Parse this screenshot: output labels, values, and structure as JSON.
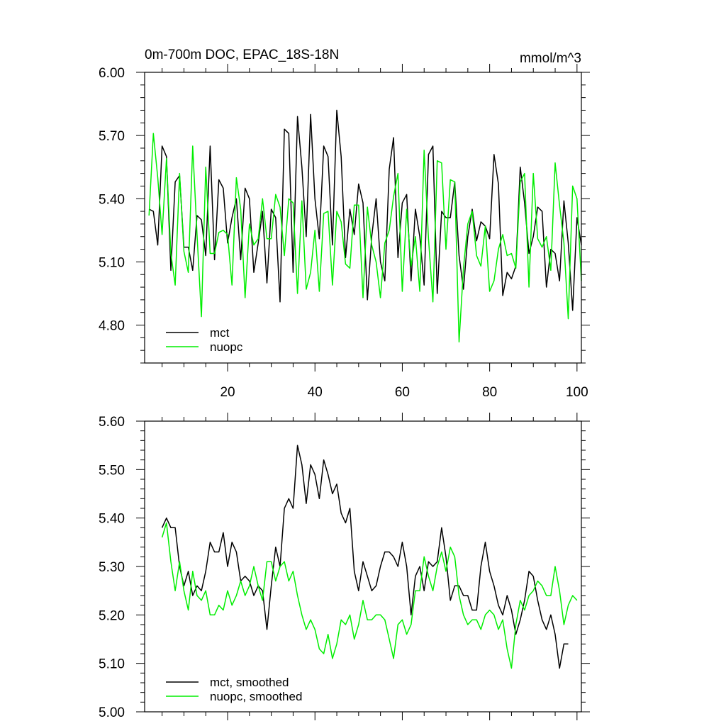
{
  "chart_data": [
    {
      "type": "line",
      "title": "0m-700m DOC, EPAC_18S-18N",
      "units": "mmol/m^3",
      "xlim": [
        1,
        101
      ],
      "ylim": [
        4.62,
        6.0
      ],
      "xticks": [
        20,
        40,
        60,
        80,
        100
      ],
      "xtick_labels": [
        "20",
        "40",
        "60",
        "80",
        "100"
      ],
      "yticks": [
        4.8,
        5.1,
        5.4,
        5.7,
        6.0
      ],
      "ytick_labels": [
        "4.80",
        "5.10",
        "5.40",
        "5.70",
        "6.00"
      ],
      "legend": "bottom-left",
      "series": [
        {
          "name": "mct",
          "color": "#000000",
          "x_start": 2,
          "values": [
            5.35,
            5.34,
            5.18,
            5.65,
            5.6,
            5.06,
            5.48,
            5.51,
            5.17,
            5.17,
            5.06,
            5.32,
            5.3,
            5.13,
            5.65,
            5.11,
            5.49,
            5.45,
            5.19,
            5.31,
            5.4,
            5.11,
            5.45,
            5.4,
            5.05,
            5.19,
            5.34,
            5.0,
            5.35,
            5.31,
            4.91,
            5.73,
            5.71,
            5.05,
            5.79,
            5.55,
            5.22,
            5.8,
            5.4,
            5.21,
            5.65,
            5.6,
            5.18,
            5.82,
            5.6,
            5.12,
            5.35,
            5.23,
            5.47,
            5.38,
            4.92,
            5.22,
            5.4,
            5.1,
            5.01,
            5.54,
            5.69,
            5.12,
            5.38,
            5.42,
            5.01,
            5.35,
            5.22,
            4.99,
            5.61,
            5.65,
            4.95,
            5.34,
            5.31,
            5.31,
            5.48,
            5.13,
            4.97,
            5.22,
            5.35,
            5.2,
            5.29,
            5.27,
            5.21,
            5.61,
            5.47,
            4.94,
            5.05,
            5.02,
            5.08,
            5.55,
            5.38,
            5.14,
            5.22,
            5.36,
            5.34,
            4.98,
            5.16,
            5.14,
            5.01,
            5.39,
            5.19,
            4.87,
            5.31,
            5.18
          ]
        },
        {
          "name": "nuopc",
          "color": "#00ee00",
          "x_start": 2,
          "values": [
            5.32,
            5.71,
            5.5,
            5.23,
            5.59,
            5.14,
            4.99,
            5.52,
            5.15,
            5.05,
            5.65,
            5.23,
            4.84,
            5.55,
            5.14,
            5.14,
            5.24,
            5.25,
            5.23,
            4.99,
            5.5,
            5.35,
            4.93,
            5.28,
            5.18,
            5.21,
            5.4,
            5.21,
            5.21,
            5.42,
            5.36,
            5.13,
            5.4,
            5.38,
            4.95,
            5.39,
            4.97,
            5.05,
            5.25,
            4.96,
            5.33,
            5.34,
            4.99,
            5.34,
            5.29,
            5.09,
            5.07,
            5.37,
            5.37,
            4.93,
            5.36,
            5.18,
            5.1,
            4.93,
            5.19,
            5.25,
            5.41,
            5.52,
            4.96,
            5.35,
            5.08,
            5.22,
            4.96,
            5.63,
            5.21,
            4.91,
            5.58,
            5.57,
            5.16,
            5.49,
            5.48,
            4.72,
            5.07,
            5.28,
            5.34,
            5.13,
            5.08,
            5.27,
            4.96,
            5.01,
            5.16,
            5.23,
            5.13,
            5.14,
            5.07,
            5.48,
            5.52,
            4.98,
            5.52,
            5.21,
            5.17,
            5.22,
            5.06,
            5.57,
            5.37,
            5.19,
            4.83,
            5.46,
            5.4,
            5.01
          ]
        }
      ]
    },
    {
      "type": "line",
      "xlim": [
        1,
        101
      ],
      "ylim": [
        5.0,
        5.6
      ],
      "xticks": [
        20,
        40,
        60,
        80,
        100
      ],
      "yticks": [
        5.0,
        5.1,
        5.2,
        5.3,
        5.4,
        5.5,
        5.6
      ],
      "ytick_labels": [
        "5.00",
        "5.10",
        "5.20",
        "5.30",
        "5.40",
        "5.50",
        "5.60"
      ],
      "legend": "bottom-left",
      "series": [
        {
          "name": "mct, smoothed",
          "color": "#000000",
          "x_start": 5,
          "values": [
            5.38,
            5.4,
            5.38,
            5.38,
            5.3,
            5.26,
            5.29,
            5.24,
            5.26,
            5.25,
            5.29,
            5.35,
            5.33,
            5.33,
            5.37,
            5.3,
            5.35,
            5.33,
            5.27,
            5.28,
            5.27,
            5.24,
            5.26,
            5.25,
            5.17,
            5.26,
            5.34,
            5.3,
            5.42,
            5.44,
            5.42,
            5.55,
            5.51,
            5.43,
            5.51,
            5.49,
            5.44,
            5.52,
            5.49,
            5.45,
            5.47,
            5.41,
            5.39,
            5.42,
            5.29,
            5.25,
            5.31,
            5.28,
            5.25,
            5.26,
            5.3,
            5.33,
            5.33,
            5.32,
            5.3,
            5.35,
            5.3,
            5.2,
            5.28,
            5.3,
            5.25,
            5.31,
            5.3,
            5.31,
            5.38,
            5.32,
            5.23,
            5.26,
            5.26,
            5.24,
            5.24,
            5.21,
            5.21,
            5.3,
            5.35,
            5.29,
            5.26,
            5.22,
            5.2,
            5.24,
            5.21,
            5.16,
            5.19,
            5.23,
            5.29,
            5.28,
            5.23,
            5.19,
            5.17,
            5.2,
            5.16,
            5.09,
            5.14,
            5.14
          ]
        },
        {
          "name": "nuopc, smoothed",
          "color": "#00ee00",
          "x_start": 5,
          "values": [
            5.36,
            5.39,
            5.31,
            5.25,
            5.31,
            5.25,
            5.21,
            5.29,
            5.24,
            5.23,
            5.25,
            5.2,
            5.2,
            5.22,
            5.21,
            5.25,
            5.22,
            5.24,
            5.27,
            5.24,
            5.26,
            5.3,
            5.26,
            5.23,
            5.31,
            5.31,
            5.27,
            5.3,
            5.31,
            5.27,
            5.29,
            5.24,
            5.2,
            5.17,
            5.19,
            5.17,
            5.13,
            5.12,
            5.16,
            5.11,
            5.14,
            5.19,
            5.18,
            5.2,
            5.15,
            5.18,
            5.23,
            5.19,
            5.19,
            5.2,
            5.2,
            5.19,
            5.15,
            5.11,
            5.18,
            5.19,
            5.16,
            5.18,
            5.25,
            5.25,
            5.32,
            5.28,
            5.25,
            5.3,
            5.33,
            5.29,
            5.34,
            5.32,
            5.24,
            5.2,
            5.18,
            5.19,
            5.19,
            5.17,
            5.2,
            5.21,
            5.2,
            5.17,
            5.19,
            5.13,
            5.09,
            5.18,
            5.23,
            5.21,
            5.24,
            5.25,
            5.27,
            5.26,
            5.24,
            5.24,
            5.3,
            5.25,
            5.18,
            5.22,
            5.24,
            5.23
          ]
        }
      ]
    }
  ]
}
